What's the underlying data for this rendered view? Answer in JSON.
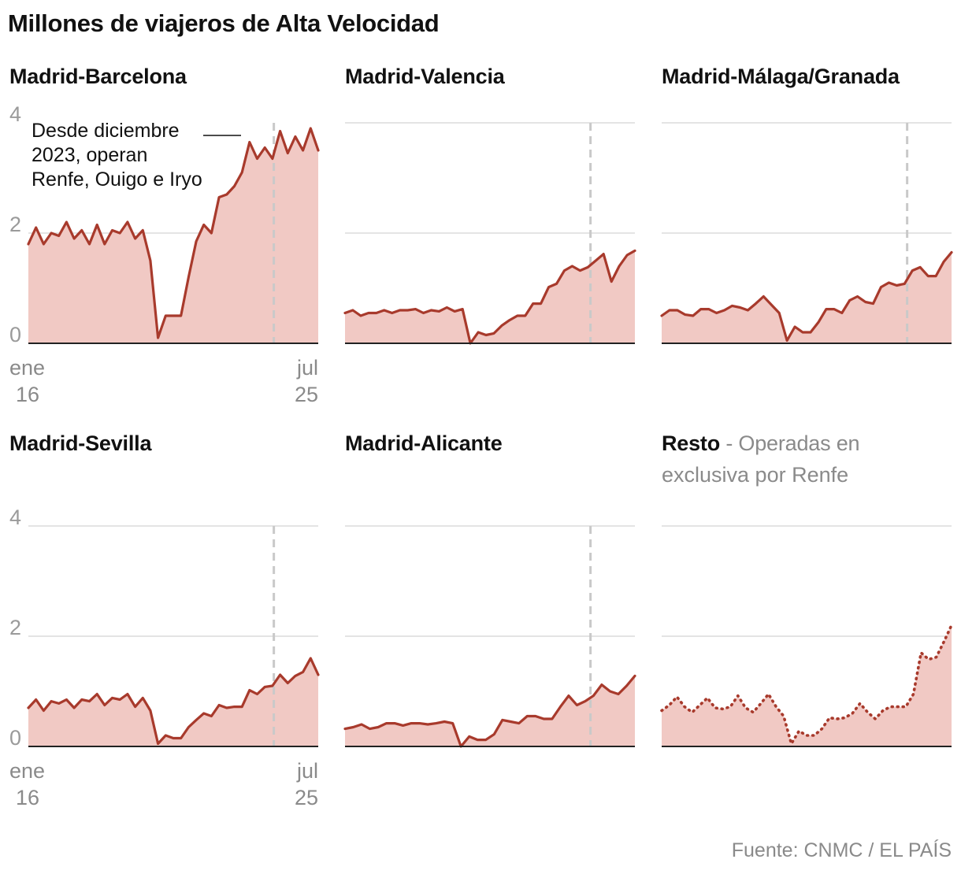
{
  "title": "Millones de viajeros de Alta Velocidad",
  "source": "Fuente: CNMC / EL PAÍS",
  "colors": {
    "line": "#a83a2c",
    "fill": "#f1c9c4",
    "grid": "#dcdcdc",
    "marker": "#c9c9c9"
  },
  "y_ticks": [
    "4",
    "2",
    "0"
  ],
  "x_ticks": {
    "start_month": "ene",
    "start_year": "16",
    "end_month": "jul",
    "end_year": "25"
  },
  "annotation": [
    "Desde diciembre",
    "2023, operan",
    "Renfe, Ouigo e Iryo"
  ],
  "chart_data": [
    {
      "type": "area",
      "name": "Madrid-Barcelona",
      "ylim": [
        0,
        4
      ],
      "marker_index": 40,
      "values": [
        1.8,
        2.1,
        1.8,
        2.0,
        1.95,
        2.2,
        1.9,
        2.05,
        1.8,
        2.15,
        1.8,
        2.05,
        2.0,
        2.2,
        1.9,
        2.05,
        1.5,
        0.1,
        0.5,
        0.5,
        0.5,
        1.2,
        1.85,
        2.15,
        2.0,
        2.65,
        2.7,
        2.85,
        3.1,
        3.65,
        3.35,
        3.55,
        3.35,
        3.85,
        3.45,
        3.75,
        3.5,
        3.9,
        3.5
      ]
    },
    {
      "type": "area",
      "name": "Madrid-Valencia",
      "ylim": [
        0,
        4
      ],
      "marker_index": 40,
      "values": [
        0.55,
        0.6,
        0.5,
        0.55,
        0.55,
        0.6,
        0.55,
        0.6,
        0.6,
        0.62,
        0.55,
        0.6,
        0.58,
        0.65,
        0.58,
        0.62,
        0.0,
        0.2,
        0.15,
        0.18,
        0.32,
        0.42,
        0.5,
        0.5,
        0.72,
        0.72,
        1.02,
        1.08,
        1.32,
        1.4,
        1.32,
        1.38,
        1.5,
        1.62,
        1.12,
        1.4,
        1.6,
        1.68
      ]
    },
    {
      "type": "area",
      "name": "Madrid-Málaga/Granada",
      "ylim": [
        0,
        4
      ],
      "marker_index": 40,
      "values": [
        0.5,
        0.6,
        0.6,
        0.52,
        0.5,
        0.62,
        0.62,
        0.55,
        0.6,
        0.68,
        0.65,
        0.6,
        0.72,
        0.85,
        0.7,
        0.55,
        0.05,
        0.3,
        0.2,
        0.2,
        0.38,
        0.62,
        0.62,
        0.55,
        0.78,
        0.85,
        0.75,
        0.72,
        1.02,
        1.1,
        1.05,
        1.08,
        1.32,
        1.38,
        1.22,
        1.22,
        1.48,
        1.65
      ]
    },
    {
      "type": "area",
      "name": "Madrid-Sevilla",
      "ylim": [
        0,
        4
      ],
      "marker_index": 40,
      "values": [
        0.7,
        0.85,
        0.65,
        0.82,
        0.78,
        0.85,
        0.7,
        0.85,
        0.82,
        0.95,
        0.75,
        0.88,
        0.85,
        0.95,
        0.72,
        0.88,
        0.65,
        0.05,
        0.2,
        0.15,
        0.15,
        0.35,
        0.48,
        0.6,
        0.55,
        0.75,
        0.7,
        0.72,
        0.72,
        1.02,
        0.95,
        1.08,
        1.1,
        1.3,
        1.15,
        1.28,
        1.35,
        1.6,
        1.3
      ]
    },
    {
      "type": "area",
      "name": "Madrid-Alicante",
      "ylim": [
        0,
        4
      ],
      "marker_index": 40,
      "values": [
        0.32,
        0.35,
        0.4,
        0.32,
        0.35,
        0.42,
        0.42,
        0.38,
        0.42,
        0.42,
        0.4,
        0.42,
        0.45,
        0.42,
        0.0,
        0.18,
        0.12,
        0.12,
        0.22,
        0.48,
        0.45,
        0.42,
        0.55,
        0.55,
        0.5,
        0.5,
        0.72,
        0.92,
        0.75,
        0.82,
        0.92,
        1.12,
        1.0,
        0.95,
        1.1,
        1.28
      ]
    },
    {
      "type": "area",
      "name": "Resto",
      "subtitle_line1": "- Operadas en",
      "subtitle_line2": "exclusiva por Renfe",
      "dotted": true,
      "ylim": [
        0,
        4
      ],
      "values": [
        0.65,
        0.75,
        0.9,
        0.72,
        0.62,
        0.75,
        0.88,
        0.7,
        0.68,
        0.72,
        0.92,
        0.7,
        0.62,
        0.78,
        0.95,
        0.72,
        0.55,
        0.05,
        0.28,
        0.2,
        0.2,
        0.32,
        0.52,
        0.5,
        0.52,
        0.6,
        0.78,
        0.62,
        0.5,
        0.65,
        0.72,
        0.72,
        0.72,
        0.95,
        1.7,
        1.58,
        1.62,
        1.9,
        2.2
      ]
    }
  ]
}
